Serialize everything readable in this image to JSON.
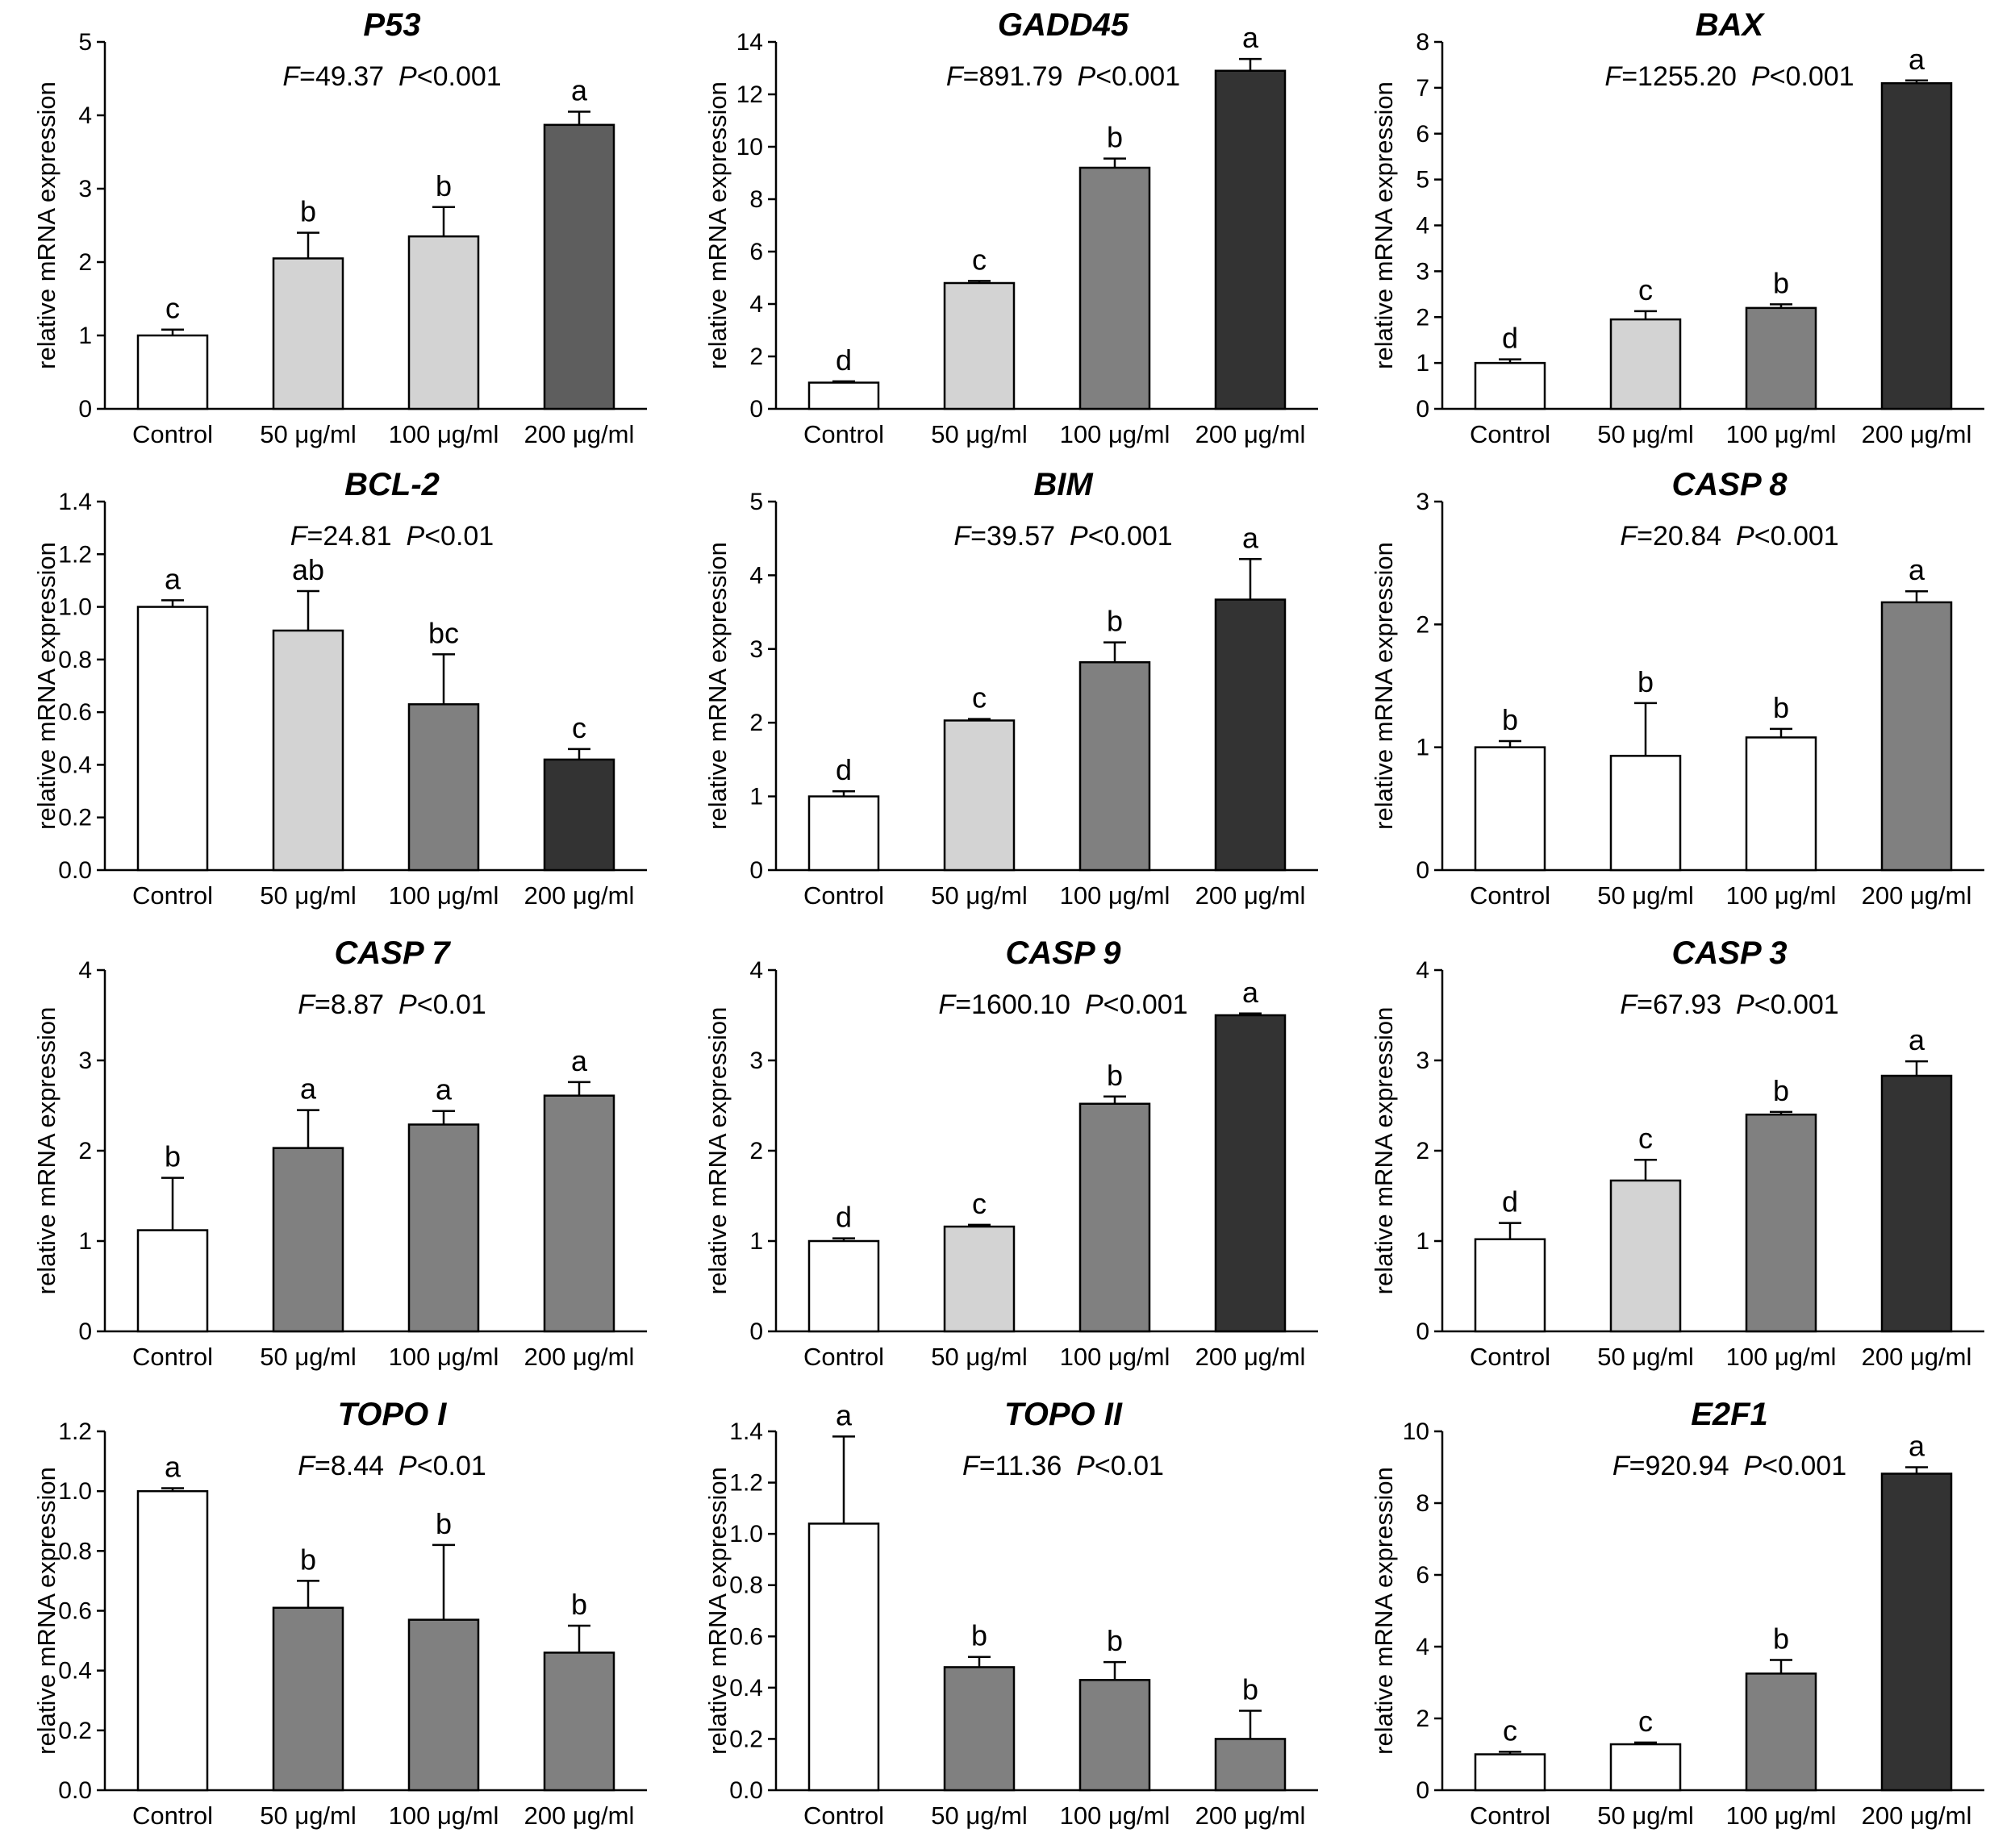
{
  "chart_data": [
    {
      "type": "bar",
      "title": "P53",
      "stat_f_label": "F",
      "stat_f_value": "=49.37",
      "stat_p_label": "P",
      "stat_p_value": "<0.001",
      "ylabel": "relative mRNA expression",
      "categories": [
        "Control",
        "50 μg/ml",
        "100 μg/ml",
        "200 μg/ml"
      ],
      "values": [
        1.0,
        2.05,
        2.35,
        3.87
      ],
      "errors": [
        0.08,
        0.35,
        0.4,
        0.18
      ],
      "letters": [
        "c",
        "b",
        "b",
        "a"
      ],
      "bar_colors": [
        "#ffffff",
        "#d3d3d3",
        "#d3d3d3",
        "#5e5e5e"
      ],
      "ylim": [
        0,
        5
      ],
      "yticks": [
        0,
        1,
        2,
        3,
        4,
        5
      ],
      "ytick_labels": [
        "0",
        "1",
        "2",
        "3",
        "4",
        "5"
      ]
    },
    {
      "type": "bar",
      "title": "GADD45",
      "stat_f_label": "F",
      "stat_f_value": "=891.79",
      "stat_p_label": "P",
      "stat_p_value": "<0.001",
      "ylabel": "relative mRNA expression",
      "categories": [
        "Control",
        "50 μg/ml",
        "100 μg/ml",
        "200 μg/ml"
      ],
      "values": [
        1.0,
        4.8,
        9.2,
        12.9
      ],
      "errors": [
        0.05,
        0.08,
        0.35,
        0.45
      ],
      "letters": [
        "d",
        "c",
        "b",
        "a"
      ],
      "bar_colors": [
        "#ffffff",
        "#d3d3d3",
        "#808080",
        "#333333"
      ],
      "ylim": [
        0,
        14
      ],
      "yticks": [
        0,
        2,
        4,
        6,
        8,
        10,
        12,
        14
      ],
      "ytick_labels": [
        "0",
        "2",
        "4",
        "6",
        "8",
        "10",
        "12",
        "14"
      ]
    },
    {
      "type": "bar",
      "title": "BAX",
      "stat_f_label": "F",
      "stat_f_value": "=1255.20",
      "stat_p_label": "P",
      "stat_p_value": "<0.001",
      "ylabel": "relative mRNA expression",
      "categories": [
        "Control",
        "50 μg/ml",
        "100 μg/ml",
        "200 μg/ml"
      ],
      "values": [
        1.0,
        1.95,
        2.2,
        7.1
      ],
      "errors": [
        0.08,
        0.18,
        0.08,
        0.06
      ],
      "letters": [
        "d",
        "c",
        "b",
        "a"
      ],
      "bar_colors": [
        "#ffffff",
        "#d3d3d3",
        "#808080",
        "#333333"
      ],
      "ylim": [
        0,
        8
      ],
      "yticks": [
        0,
        1,
        2,
        3,
        4,
        5,
        6,
        7,
        8
      ],
      "ytick_labels": [
        "0",
        "1",
        "2",
        "3",
        "4",
        "5",
        "6",
        "7",
        "8"
      ]
    },
    {
      "type": "bar",
      "title": "BCL-2",
      "stat_f_label": "F",
      "stat_f_value": "=24.81",
      "stat_p_label": "P",
      "stat_p_value": "<0.01",
      "ylabel": "relative mRNA expression",
      "categories": [
        "Control",
        "50 μg/ml",
        "100 μg/ml",
        "200 μg/ml"
      ],
      "values": [
        1.0,
        0.91,
        0.63,
        0.42
      ],
      "errors": [
        0.025,
        0.15,
        0.19,
        0.04
      ],
      "letters": [
        "a",
        "ab",
        "bc",
        "c"
      ],
      "bar_colors": [
        "#ffffff",
        "#d3d3d3",
        "#808080",
        "#333333"
      ],
      "ylim": [
        0,
        1.4
      ],
      "yticks": [
        0,
        0.2,
        0.4,
        0.6,
        0.8,
        1.0,
        1.2,
        1.4
      ],
      "ytick_labels": [
        "0.0",
        "0.2",
        "0.4",
        "0.6",
        "0.8",
        "1.0",
        "1.2",
        "1.4"
      ]
    },
    {
      "type": "bar",
      "title": "BIM",
      "stat_f_label": "F",
      "stat_f_value": "=39.57",
      "stat_p_label": "P",
      "stat_p_value": "<0.001",
      "ylabel": "relative mRNA expression",
      "categories": [
        "Control",
        "50 μg/ml",
        "100 μg/ml",
        "200 μg/ml"
      ],
      "values": [
        1.0,
        2.03,
        2.82,
        3.67
      ],
      "errors": [
        0.07,
        0.02,
        0.27,
        0.55
      ],
      "letters": [
        "d",
        "c",
        "b",
        "a"
      ],
      "bar_colors": [
        "#ffffff",
        "#d3d3d3",
        "#808080",
        "#333333"
      ],
      "ylim": [
        0,
        5
      ],
      "yticks": [
        0,
        1,
        2,
        3,
        4,
        5
      ],
      "ytick_labels": [
        "0",
        "1",
        "2",
        "3",
        "4",
        "5"
      ]
    },
    {
      "type": "bar",
      "title": "CASP 8",
      "stat_f_label": "F",
      "stat_f_value": "=20.84",
      "stat_p_label": "P",
      "stat_p_value": "<0.001",
      "ylabel": "relative mRNA expression",
      "categories": [
        "Control",
        "50 μg/ml",
        "100 μg/ml",
        "200 μg/ml"
      ],
      "values": [
        1.0,
        0.93,
        1.08,
        2.18
      ],
      "errors": [
        0.05,
        0.43,
        0.07,
        0.09
      ],
      "letters": [
        "b",
        "b",
        "b",
        "a"
      ],
      "bar_colors": [
        "#ffffff",
        "#ffffff",
        "#ffffff",
        "#808080"
      ],
      "ylim": [
        0,
        3
      ],
      "yticks": [
        0,
        1,
        2,
        3
      ],
      "ytick_labels": [
        "0",
        "1",
        "2",
        "3"
      ]
    },
    {
      "type": "bar",
      "title": "CASP 7",
      "stat_f_label": "F",
      "stat_f_value": "=8.87",
      "stat_p_label": "P",
      "stat_p_value": "<0.01",
      "ylabel": "relative mRNA expression",
      "categories": [
        "Control",
        "50 μg/ml",
        "100 μg/ml",
        "200 μg/ml"
      ],
      "values": [
        1.12,
        2.03,
        2.29,
        2.61
      ],
      "errors": [
        0.58,
        0.42,
        0.15,
        0.15
      ],
      "letters": [
        "b",
        "a",
        "a",
        "a"
      ],
      "bar_colors": [
        "#ffffff",
        "#808080",
        "#808080",
        "#808080"
      ],
      "ylim": [
        0,
        4
      ],
      "yticks": [
        0,
        1,
        2,
        3,
        4
      ],
      "ytick_labels": [
        "0",
        "1",
        "2",
        "3",
        "4"
      ]
    },
    {
      "type": "bar",
      "title": "CASP 9",
      "stat_f_label": "F",
      "stat_f_value": "=1600.10",
      "stat_p_label": "P",
      "stat_p_value": "<0.001",
      "ylabel": "relative mRNA expression",
      "categories": [
        "Control",
        "50 μg/ml",
        "100 μg/ml",
        "200 μg/ml"
      ],
      "values": [
        1.0,
        1.16,
        2.52,
        3.5
      ],
      "errors": [
        0.03,
        0.02,
        0.08,
        0.02
      ],
      "letters": [
        "d",
        "c",
        "b",
        "a"
      ],
      "bar_colors": [
        "#ffffff",
        "#d3d3d3",
        "#808080",
        "#333333"
      ],
      "ylim": [
        0,
        4
      ],
      "yticks": [
        0,
        1,
        2,
        3,
        4
      ],
      "ytick_labels": [
        "0",
        "1",
        "2",
        "3",
        "4"
      ]
    },
    {
      "type": "bar",
      "title": "CASP 3",
      "stat_f_label": "F",
      "stat_f_value": "=67.93",
      "stat_p_label": "P",
      "stat_p_value": "<0.001",
      "ylabel": "relative mRNA expression",
      "categories": [
        "Control",
        "50 μg/ml",
        "100 μg/ml",
        "200 μg/ml"
      ],
      "values": [
        1.02,
        1.67,
        2.4,
        2.83
      ],
      "errors": [
        0.18,
        0.23,
        0.03,
        0.16
      ],
      "letters": [
        "d",
        "c",
        "b",
        "a"
      ],
      "bar_colors": [
        "#ffffff",
        "#d3d3d3",
        "#808080",
        "#333333"
      ],
      "ylim": [
        0,
        4
      ],
      "yticks": [
        0,
        1,
        2,
        3,
        4
      ],
      "ytick_labels": [
        "0",
        "1",
        "2",
        "3",
        "4"
      ]
    },
    {
      "type": "bar",
      "title": "TOPO I",
      "stat_f_label": "F",
      "stat_f_value": "=8.44",
      "stat_p_label": "P",
      "stat_p_value": "<0.01",
      "ylabel": "relative mRNA expression",
      "categories": [
        "Control",
        "50 μg/ml",
        "100 μg/ml",
        "200 μg/ml"
      ],
      "values": [
        1.0,
        0.61,
        0.57,
        0.46
      ],
      "errors": [
        0.01,
        0.09,
        0.25,
        0.09
      ],
      "letters": [
        "a",
        "b",
        "b",
        "b"
      ],
      "bar_colors": [
        "#ffffff",
        "#808080",
        "#808080",
        "#808080"
      ],
      "ylim": [
        0,
        1.2
      ],
      "yticks": [
        0,
        0.2,
        0.4,
        0.6,
        0.8,
        1.0,
        1.2
      ],
      "ytick_labels": [
        "0.0",
        "0.2",
        "0.4",
        "0.6",
        "0.8",
        "1.0",
        "1.2"
      ]
    },
    {
      "type": "bar",
      "title": "TOPO II",
      "stat_f_label": "F",
      "stat_f_value": "=11.36",
      "stat_p_label": "P",
      "stat_p_value": "<0.01",
      "ylabel": "relative mRNA expression",
      "categories": [
        "Control",
        "50 μg/ml",
        "100 μg/ml",
        "200 μg/ml"
      ],
      "values": [
        1.04,
        0.48,
        0.43,
        0.2
      ],
      "errors": [
        0.34,
        0.04,
        0.07,
        0.11
      ],
      "letters": [
        "a",
        "b",
        "b",
        "b"
      ],
      "bar_colors": [
        "#ffffff",
        "#808080",
        "#808080",
        "#808080"
      ],
      "ylim": [
        0,
        1.4
      ],
      "yticks": [
        0,
        0.2,
        0.4,
        0.6,
        0.8,
        1.0,
        1.2,
        1.4
      ],
      "ytick_labels": [
        "0.0",
        "0.2",
        "0.4",
        "0.6",
        "0.8",
        "1.0",
        "1.2",
        "1.4"
      ]
    },
    {
      "type": "bar",
      "title": "E2F1",
      "stat_f_label": "F",
      "stat_f_value": "=920.94",
      "stat_p_label": "P",
      "stat_p_value": "<0.001",
      "ylabel": "relative mRNA expression",
      "categories": [
        "Control",
        "50 μg/ml",
        "100 μg/ml",
        "200 μg/ml"
      ],
      "values": [
        1.0,
        1.28,
        3.25,
        8.82
      ],
      "errors": [
        0.07,
        0.05,
        0.38,
        0.18
      ],
      "letters": [
        "c",
        "c",
        "b",
        "a"
      ],
      "bar_colors": [
        "#ffffff",
        "#ffffff",
        "#808080",
        "#333333"
      ],
      "ylim": [
        0,
        10
      ],
      "yticks": [
        0,
        2,
        4,
        6,
        8,
        10
      ],
      "ytick_labels": [
        "0",
        "2",
        "4",
        "6",
        "8",
        "10"
      ]
    }
  ]
}
